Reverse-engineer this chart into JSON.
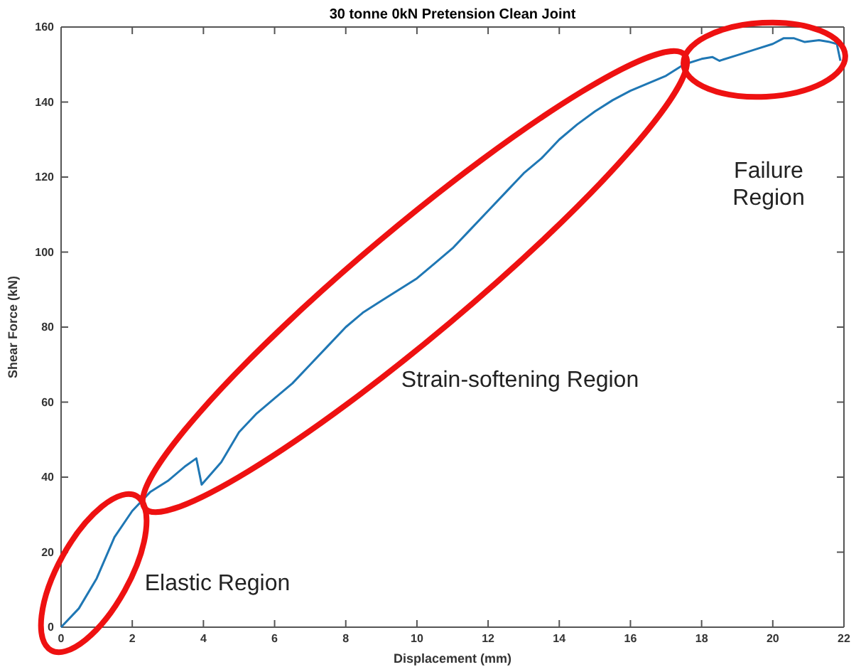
{
  "chart_data": {
    "type": "line",
    "title": "30 tonne 0kN Pretension Clean Joint",
    "xlabel": "Displacement (mm)",
    "ylabel": "Shear Force (kN)",
    "xlim": [
      0,
      22
    ],
    "xticks": [
      0,
      2,
      4,
      6,
      8,
      10,
      12,
      14,
      16,
      18,
      20,
      22
    ],
    "ylim": [
      0,
      160
    ],
    "yticks": [
      0,
      20,
      40,
      60,
      80,
      100,
      120,
      140,
      160
    ],
    "grid": false,
    "series": [
      {
        "color": "#1f77b4",
        "x": [
          0,
          0.5,
          1,
          1.5,
          2,
          2.5,
          3,
          3.5,
          3.8,
          3.95,
          4.5,
          5,
          5.5,
          6,
          6.5,
          7,
          7.5,
          8,
          8.5,
          9,
          9.5,
          10,
          10.5,
          11,
          11.5,
          12,
          12.5,
          13,
          13.5,
          14,
          14.5,
          15,
          15.5,
          16,
          16.5,
          17,
          17.5,
          18,
          18.3,
          18.5,
          19,
          19.5,
          20,
          20.3,
          20.6,
          20.9,
          21.3,
          21.6,
          21.8,
          21.9
        ],
        "values": [
          0,
          5,
          13,
          24,
          31,
          36,
          39,
          43,
          45,
          38,
          44,
          52,
          57,
          61,
          65,
          70,
          75,
          80,
          84,
          87,
          90,
          93,
          97,
          101,
          106,
          111,
          116,
          121,
          125,
          130,
          134,
          137.5,
          140.5,
          143,
          145,
          147,
          150,
          151.5,
          152,
          151,
          152.5,
          154,
          155.5,
          157,
          157,
          156,
          156.5,
          156,
          155.5,
          151
        ]
      }
    ],
    "annotations": [
      "Elastic Region",
      "Strain-softening Region",
      "Failure Region"
    ]
  }
}
